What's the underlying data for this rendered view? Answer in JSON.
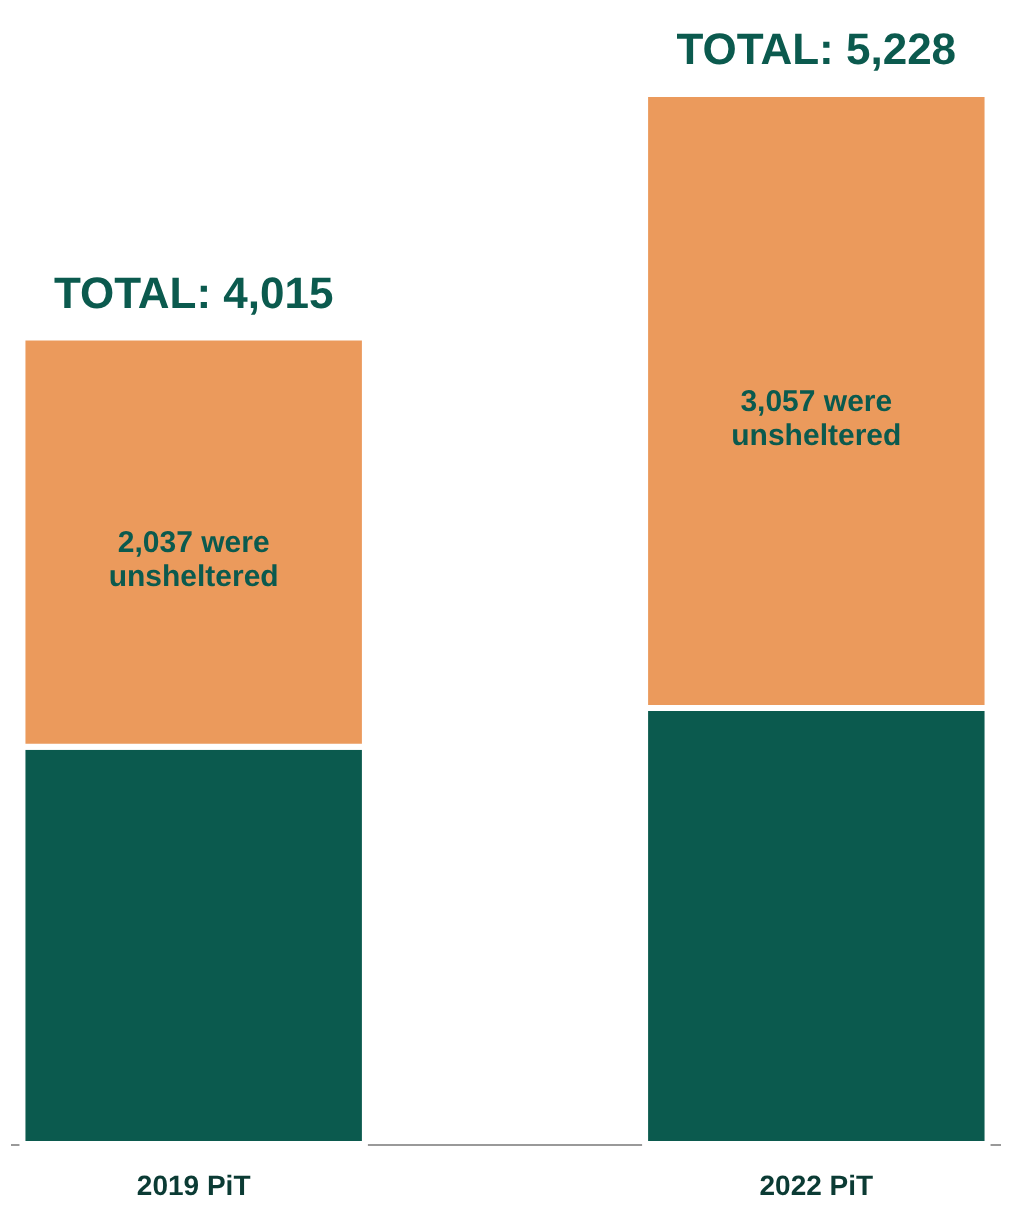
{
  "chart_data": {
    "type": "bar",
    "stacked": true,
    "legend": false,
    "categories": [
      "2019 PiT",
      "2022 PiT"
    ],
    "series": [
      {
        "color": "#0b5a4e",
        "values": [
          1978,
          2171
        ]
      },
      {
        "color": "#eb9a5c",
        "values": [
          2037,
          3057
        ],
        "value_labels": [
          "2,037 were\nunsheltered",
          "3,057 were\nunsheltered"
        ]
      }
    ],
    "totals": [
      "TOTAL: 4,015",
      "TOTAL: 5,228"
    ]
  }
}
